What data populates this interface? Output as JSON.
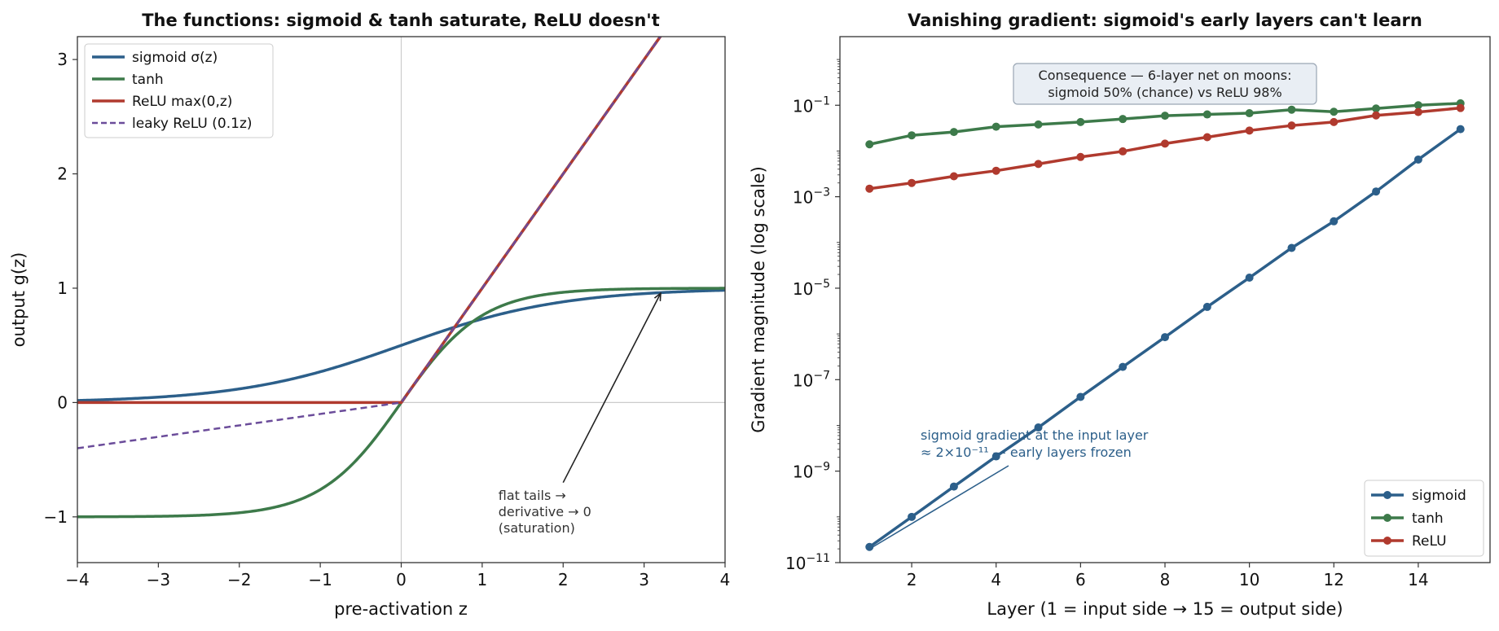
{
  "colors": {
    "sigmoid": "#2c5f8a",
    "tanh": "#3d7a4a",
    "relu": "#b03a2e",
    "leaky": "#6b4c9a",
    "annot_text": "#333333",
    "annot_blue": "#2c5f8a"
  },
  "chart_data": [
    {
      "type": "line",
      "title": "The functions: sigmoid & tanh saturate, ReLU doesn't",
      "xlabel": "pre-activation  z",
      "ylabel": "output  g(z)",
      "xlim": [
        -4,
        4
      ],
      "ylim": [
        -1.4,
        3.2
      ],
      "xticks": [
        -4,
        -3,
        -2,
        -1,
        0,
        1,
        2,
        3,
        4
      ],
      "xtick_labels": [
        "−4",
        "−3",
        "−2",
        "−1",
        "0",
        "1",
        "2",
        "3",
        "4"
      ],
      "yticks": [
        -1,
        0,
        1,
        2,
        3
      ],
      "ytick_labels": [
        "−1",
        "0",
        "1",
        "2",
        "3"
      ],
      "reference_lines": {
        "x": 0,
        "y": 0
      },
      "legend_position": "top-left",
      "series": [
        {
          "name": "sigmoid  σ(z)",
          "function": "sigmoid",
          "color": "#2c5f8a",
          "style": "solid"
        },
        {
          "name": "tanh",
          "function": "tanh",
          "color": "#3d7a4a",
          "style": "solid"
        },
        {
          "name": "ReLU  max(0,z)",
          "function": "relu",
          "color": "#b03a2e",
          "style": "solid"
        },
        {
          "name": "leaky ReLU  (0.1z)",
          "function": "leaky_relu_0.1",
          "color": "#6b4c9a",
          "style": "dashed"
        }
      ],
      "annotation": {
        "lines": [
          "flat tails →",
          "derivative → 0",
          "(saturation)"
        ],
        "text_at": [
          1.2,
          -0.85
        ],
        "arrow_from": [
          2.0,
          -0.7
        ],
        "arrow_to": [
          3.2,
          0.95
        ]
      }
    },
    {
      "type": "line",
      "title": "Vanishing gradient: sigmoid's early layers can't learn",
      "xlabel": "Layer (1 = input side  →  15 = output side)",
      "ylabel": "Gradient magnitude (log scale)",
      "yscale": "log",
      "xlim": [
        0.3,
        15.7
      ],
      "ylim_log10": [
        -11,
        0.5
      ],
      "xticks": [
        2,
        4,
        6,
        8,
        10,
        12,
        14
      ],
      "yticks_log10": [
        -11,
        -9,
        -7,
        -5,
        -3,
        -1
      ],
      "legend_position": "bottom-right",
      "x": [
        1,
        2,
        3,
        4,
        5,
        6,
        7,
        8,
        9,
        10,
        11,
        12,
        13,
        14,
        15
      ],
      "series": [
        {
          "name": "sigmoid",
          "color": "#2c5f8a",
          "values": [
            2.2e-11,
            1e-10,
            4.6e-10,
            2.1e-09,
            9e-09,
            4.2e-08,
            1.9e-07,
            8.5e-07,
            3.9e-06,
            1.7e-05,
            7.6e-05,
            0.00029,
            0.0013,
            0.0065,
            0.03
          ]
        },
        {
          "name": "tanh",
          "color": "#3d7a4a",
          "values": [
            0.014,
            0.022,
            0.026,
            0.034,
            0.038,
            0.043,
            0.05,
            0.059,
            0.063,
            0.067,
            0.08,
            0.072,
            0.085,
            0.1,
            0.11
          ]
        },
        {
          "name": "ReLU",
          "color": "#b03a2e",
          "values": [
            0.0015,
            0.002,
            0.0028,
            0.0037,
            0.0052,
            0.0074,
            0.0098,
            0.0145,
            0.02,
            0.028,
            0.036,
            0.043,
            0.06,
            0.071,
            0.087
          ]
        }
      ],
      "textbox": {
        "lines": [
          "Consequence — 6-layer net on moons:",
          "sigmoid 50% (chance)   vs   ReLU 98%"
        ]
      },
      "annotation": {
        "lines": [
          "sigmoid gradient at the input layer",
          "≈ 2×10⁻¹¹ — early layers frozen"
        ]
      }
    }
  ]
}
